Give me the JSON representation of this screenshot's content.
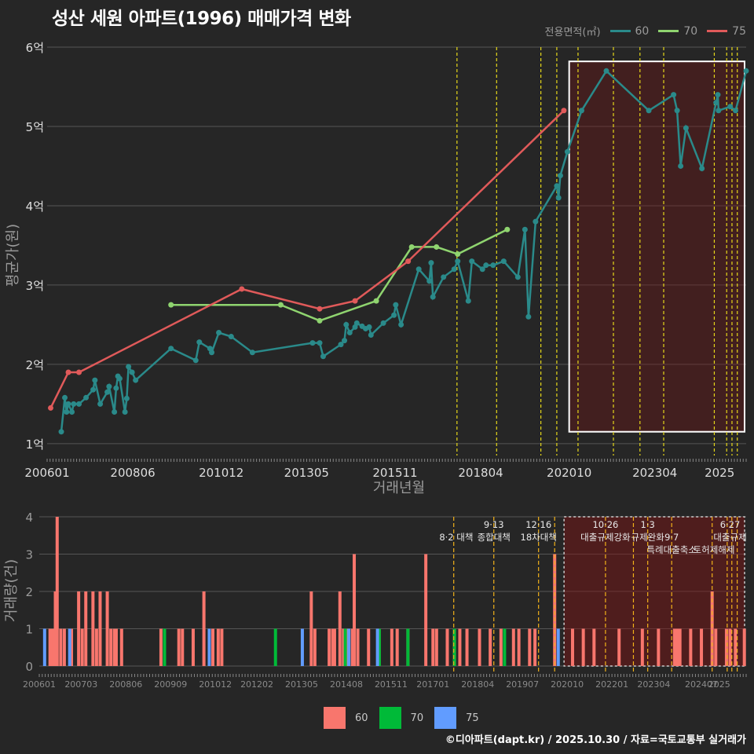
{
  "title": "성산 세원 아파트(1996) 매매가격 변화",
  "credit": "©디아파트(dapt.kr) / 2025.10.30 / 자료=국토교통부 실거래가",
  "legend": {
    "title": "전용면적(㎡)",
    "items": [
      {
        "label": "60",
        "color": "#2a8a8a"
      },
      {
        "label": "70",
        "color": "#8fd46f"
      },
      {
        "label": "75",
        "color": "#e05a5a"
      }
    ]
  },
  "bar_legend": [
    {
      "label": "60",
      "color": "#f8766d"
    },
    {
      "label": "70",
      "color": "#00ba38"
    },
    {
      "label": "75",
      "color": "#619cff"
    }
  ],
  "chart_data": [
    {
      "type": "line",
      "ylabel": "평균가(원)",
      "xlabel": "거래년월",
      "ylim": [
        1,
        6
      ],
      "xlim": [
        2006.0,
        2025.75
      ],
      "y_ticks": [
        {
          "v": 1,
          "label": "1억"
        },
        {
          "v": 2,
          "label": "2억"
        },
        {
          "v": 3,
          "label": "3억"
        },
        {
          "v": 4,
          "label": "4억"
        },
        {
          "v": 5,
          "label": "5억"
        },
        {
          "v": 6,
          "label": "6억"
        }
      ],
      "x_ticks": [
        {
          "v": 2006.0,
          "label": "200601"
        },
        {
          "v": 2008.42,
          "label": "200806"
        },
        {
          "v": 2010.92,
          "label": "201012"
        },
        {
          "v": 2013.33,
          "label": "201305"
        },
        {
          "v": 2015.83,
          "label": "201511"
        },
        {
          "v": 2018.25,
          "label": "201804"
        },
        {
          "v": 2020.75,
          "label": "202010"
        },
        {
          "v": 2023.17,
          "label": "202304"
        },
        {
          "v": 2025.0,
          "label": "2025"
        }
      ],
      "highlight_box": {
        "x0": 2020.75,
        "x1": 2025.75,
        "y0": 1.15,
        "y1": 5.82
      },
      "policy_lines": [
        2017.58,
        2018.7,
        2019.95,
        2020.4,
        2021.0,
        2022.0,
        2022.75,
        2023.42,
        2024.85,
        2025.2,
        2025.35,
        2025.5
      ],
      "series": [
        {
          "name": "60",
          "color": "#2a8a8a",
          "points": [
            [
              2006.4,
              1.15
            ],
            [
              2006.5,
              1.58
            ],
            [
              2006.55,
              1.4
            ],
            [
              2006.6,
              1.5
            ],
            [
              2006.7,
              1.4
            ],
            [
              2006.75,
              1.5
            ],
            [
              2006.9,
              1.5
            ],
            [
              2007.1,
              1.58
            ],
            [
              2007.3,
              1.68
            ],
            [
              2007.35,
              1.8
            ],
            [
              2007.5,
              1.5
            ],
            [
              2007.7,
              1.65
            ],
            [
              2007.75,
              1.72
            ],
            [
              2007.9,
              1.4
            ],
            [
              2007.95,
              1.7
            ],
            [
              2008.0,
              1.85
            ],
            [
              2008.05,
              1.82
            ],
            [
              2008.2,
              1.4
            ],
            [
              2008.25,
              1.57
            ],
            [
              2008.3,
              1.97
            ],
            [
              2008.4,
              1.9
            ],
            [
              2008.5,
              1.8
            ],
            [
              2009.5,
              2.2
            ],
            [
              2010.2,
              2.05
            ],
            [
              2010.3,
              2.28
            ],
            [
              2010.6,
              2.2
            ],
            [
              2010.65,
              2.15
            ],
            [
              2010.85,
              2.4
            ],
            [
              2011.2,
              2.35
            ],
            [
              2011.8,
              2.15
            ],
            [
              2013.5,
              2.27
            ],
            [
              2013.7,
              2.27
            ],
            [
              2013.8,
              2.1
            ],
            [
              2014.3,
              2.25
            ],
            [
              2014.4,
              2.3
            ],
            [
              2014.45,
              2.5
            ],
            [
              2014.55,
              2.4
            ],
            [
              2014.7,
              2.47
            ],
            [
              2014.75,
              2.52
            ],
            [
              2014.9,
              2.48
            ],
            [
              2015.0,
              2.45
            ],
            [
              2015.1,
              2.47
            ],
            [
              2015.15,
              2.37
            ],
            [
              2015.5,
              2.52
            ],
            [
              2015.8,
              2.62
            ],
            [
              2015.85,
              2.75
            ],
            [
              2016.0,
              2.5
            ],
            [
              2016.5,
              3.2
            ],
            [
              2016.8,
              3.05
            ],
            [
              2016.85,
              3.28
            ],
            [
              2016.9,
              2.85
            ],
            [
              2017.2,
              3.1
            ],
            [
              2017.5,
              3.2
            ],
            [
              2017.6,
              3.3
            ],
            [
              2017.9,
              2.8
            ],
            [
              2018.0,
              3.3
            ],
            [
              2018.3,
              3.2
            ],
            [
              2018.4,
              3.25
            ],
            [
              2018.6,
              3.25
            ],
            [
              2018.9,
              3.3
            ],
            [
              2019.3,
              3.1
            ],
            [
              2019.5,
              3.7
            ],
            [
              2019.6,
              2.6
            ],
            [
              2019.8,
              3.8
            ],
            [
              2020.4,
              4.25
            ],
            [
              2020.45,
              4.1
            ],
            [
              2020.5,
              4.38
            ],
            [
              2020.7,
              4.68
            ],
            [
              2021.1,
              5.2
            ],
            [
              2021.8,
              5.7
            ],
            [
              2023.0,
              5.2
            ],
            [
              2023.7,
              5.4
            ],
            [
              2023.8,
              5.2
            ],
            [
              2023.9,
              4.5
            ],
            [
              2024.05,
              4.98
            ],
            [
              2024.5,
              4.47
            ],
            [
              2024.9,
              5.3
            ],
            [
              2024.95,
              5.4
            ],
            [
              2024.97,
              5.2
            ],
            [
              2025.3,
              5.25
            ],
            [
              2025.45,
              5.2
            ],
            [
              2025.75,
              5.7
            ]
          ]
        },
        {
          "name": "70",
          "color": "#8fd46f",
          "points": [
            [
              2009.5,
              2.75
            ],
            [
              2012.6,
              2.75
            ],
            [
              2013.7,
              2.55
            ],
            [
              2015.3,
              2.8
            ],
            [
              2016.3,
              3.48
            ],
            [
              2017.0,
              3.48
            ],
            [
              2017.6,
              3.39
            ],
            [
              2019.0,
              3.7
            ]
          ]
        },
        {
          "name": "75",
          "color": "#e05a5a",
          "points": [
            [
              2006.1,
              1.45
            ],
            [
              2006.6,
              1.9
            ],
            [
              2006.9,
              1.9
            ],
            [
              2011.5,
              2.95
            ],
            [
              2013.7,
              2.7
            ],
            [
              2014.7,
              2.8
            ],
            [
              2016.2,
              3.3
            ],
            [
              2020.6,
              5.2
            ]
          ]
        }
      ]
    },
    {
      "type": "bar",
      "ylabel": "거래량(건)",
      "ylim": [
        0,
        4
      ],
      "xlim": [
        2006.0,
        2025.75
      ],
      "y_ticks": [
        0,
        1,
        2,
        3,
        4
      ],
      "x_ticks": [
        {
          "v": 2006.0,
          "label": "200601"
        },
        {
          "v": 2007.17,
          "label": "200703"
        },
        {
          "v": 2008.42,
          "label": "200806"
        },
        {
          "v": 2009.67,
          "label": "200909"
        },
        {
          "v": 2010.92,
          "label": "201012"
        },
        {
          "v": 2012.08,
          "label": "201202"
        },
        {
          "v": 2013.33,
          "label": "201305"
        },
        {
          "v": 2014.58,
          "label": "201408"
        },
        {
          "v": 2015.83,
          "label": "201511"
        },
        {
          "v": 2017.0,
          "label": "201701"
        },
        {
          "v": 2018.25,
          "label": "201804"
        },
        {
          "v": 2019.5,
          "label": "201907"
        },
        {
          "v": 2020.75,
          "label": "202010"
        },
        {
          "v": 2022.0,
          "label": "202201"
        },
        {
          "v": 2023.17,
          "label": "202304"
        },
        {
          "v": 2024.5,
          "label": "202407"
        },
        {
          "v": 2025.0,
          "label": "2025"
        }
      ],
      "highlight_box": {
        "x0": 2020.75,
        "x1": 2025.75,
        "y0": 0,
        "y1": 4
      },
      "policies": [
        {
          "x": 2017.58,
          "date": "8·2 대책",
          "name": ""
        },
        {
          "x": 2018.7,
          "date": "9·13",
          "name": "종합대책"
        },
        {
          "x": 2019.95,
          "date": "12·16",
          "name": "18차대책"
        },
        {
          "x": 2020.4,
          "date": "",
          "name": ""
        },
        {
          "x": 2021.82,
          "date": "10·26",
          "name": "대출규제강화"
        },
        {
          "x": 2022.6,
          "date": "",
          "name": ""
        },
        {
          "x": 2023.0,
          "date": "1·3",
          "name": "규제완화"
        },
        {
          "x": 2023.67,
          "date": "9·7",
          "name": "특례대출축소"
        },
        {
          "x": 2024.8,
          "date": "",
          "name": "토허제해제"
        },
        {
          "x": 2025.22,
          "date": "6·27",
          "name": "대출규제"
        },
        {
          "x": 2025.35,
          "date": "",
          "name": ""
        },
        {
          "x": 2025.5,
          "date": "",
          "name": ""
        }
      ],
      "policy_labels_top": [
        {
          "x": 2017.65,
          "text": "8·2 대책",
          "row": 1
        },
        {
          "x": 2018.7,
          "text": "9·13",
          "row": 0
        },
        {
          "x": 2018.7,
          "text": "종합대책",
          "row": 1
        },
        {
          "x": 2019.95,
          "text": "12·16",
          "row": 0
        },
        {
          "x": 2019.95,
          "text": "18차대책",
          "row": 1
        },
        {
          "x": 2021.82,
          "text": "10·26",
          "row": 0
        },
        {
          "x": 2021.82,
          "text": "대출규제강화",
          "row": 1
        },
        {
          "x": 2023.0,
          "text": "1·3",
          "row": 0
        },
        {
          "x": 2023.0,
          "text": "규제완화",
          "row": 1
        },
        {
          "x": 2023.67,
          "text": "9·7",
          "row": 1
        },
        {
          "x": 2023.67,
          "text": "특례대출축소",
          "row": 2
        },
        {
          "x": 2024.85,
          "text": "토허제해제",
          "row": 2
        },
        {
          "x": 2025.3,
          "text": "6·27",
          "row": 0
        },
        {
          "x": 2025.3,
          "text": "대출규제",
          "row": 1
        }
      ],
      "series": [
        {
          "name": "60",
          "color": "#f8766d",
          "bars": [
            [
              2006.3,
              1
            ],
            [
              2006.35,
              1
            ],
            [
              2006.4,
              1
            ],
            [
              2006.45,
              2
            ],
            [
              2006.5,
              4
            ],
            [
              2006.6,
              1
            ],
            [
              2006.7,
              1
            ],
            [
              2006.9,
              1
            ],
            [
              2007.1,
              2
            ],
            [
              2007.2,
              1
            ],
            [
              2007.3,
              2
            ],
            [
              2007.5,
              2
            ],
            [
              2007.6,
              1
            ],
            [
              2007.7,
              2
            ],
            [
              2007.9,
              2
            ],
            [
              2008.0,
              1
            ],
            [
              2008.1,
              1
            ],
            [
              2008.15,
              1
            ],
            [
              2008.3,
              1
            ],
            [
              2009.4,
              1
            ],
            [
              2009.9,
              1
            ],
            [
              2010.0,
              1
            ],
            [
              2010.3,
              1
            ],
            [
              2010.6,
              2
            ],
            [
              2010.85,
              1
            ],
            [
              2011.0,
              1
            ],
            [
              2011.1,
              1
            ],
            [
              2013.6,
              2
            ],
            [
              2013.7,
              1
            ],
            [
              2014.1,
              1
            ],
            [
              2014.2,
              1
            ],
            [
              2014.25,
              1
            ],
            [
              2014.4,
              2
            ],
            [
              2014.5,
              1
            ],
            [
              2014.6,
              1
            ],
            [
              2014.75,
              1
            ],
            [
              2014.8,
              3
            ],
            [
              2014.9,
              1
            ],
            [
              2015.2,
              1
            ],
            [
              2015.5,
              1
            ],
            [
              2015.85,
              1
            ],
            [
              2016.0,
              1
            ],
            [
              2016.3,
              1
            ],
            [
              2016.8,
              3
            ],
            [
              2017.0,
              1
            ],
            [
              2017.1,
              1
            ],
            [
              2017.4,
              1
            ],
            [
              2017.6,
              1
            ],
            [
              2017.75,
              1
            ],
            [
              2017.95,
              1
            ],
            [
              2018.3,
              1
            ],
            [
              2018.6,
              1
            ],
            [
              2018.9,
              1
            ],
            [
              2019.25,
              1
            ],
            [
              2019.4,
              1
            ],
            [
              2019.7,
              1
            ],
            [
              2019.85,
              1
            ],
            [
              2020.4,
              3
            ],
            [
              2020.9,
              1
            ],
            [
              2021.2,
              1
            ],
            [
              2021.5,
              1
            ],
            [
              2022.2,
              1
            ],
            [
              2022.85,
              1
            ],
            [
              2023.3,
              1
            ],
            [
              2023.75,
              1
            ],
            [
              2023.8,
              1
            ],
            [
              2023.85,
              1
            ],
            [
              2023.9,
              1
            ],
            [
              2024.2,
              1
            ],
            [
              2024.5,
              1
            ],
            [
              2024.8,
              2
            ],
            [
              2024.9,
              1
            ],
            [
              2025.2,
              1
            ],
            [
              2025.3,
              1
            ],
            [
              2025.45,
              1
            ],
            [
              2025.7,
              1
            ]
          ]
        },
        {
          "name": "70",
          "color": "#00ba38",
          "bars": [
            [
              2009.5,
              1
            ],
            [
              2012.6,
              1
            ],
            [
              2014.55,
              1
            ],
            [
              2015.5,
              1
            ],
            [
              2016.3,
              1
            ],
            [
              2017.6,
              1
            ],
            [
              2019.0,
              1
            ]
          ]
        },
        {
          "name": "75",
          "color": "#619cff",
          "bars": [
            [
              2006.15,
              1
            ],
            [
              2006.85,
              1
            ],
            [
              2010.75,
              1
            ],
            [
              2013.35,
              1
            ],
            [
              2014.65,
              1
            ],
            [
              2015.45,
              1
            ],
            [
              2020.5,
              1
            ]
          ]
        }
      ]
    }
  ]
}
